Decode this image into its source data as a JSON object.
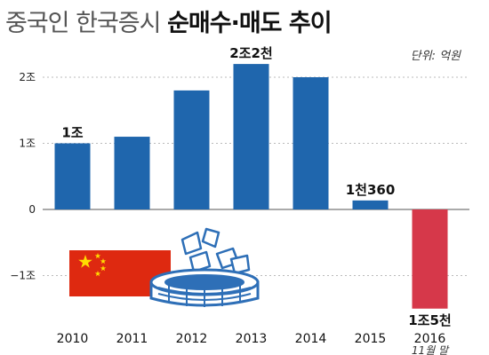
{
  "title": {
    "light": "중국인 한국증시",
    "bold": "순매수·매도 추이"
  },
  "unit_label": "단위: 억원",
  "chart_data": {
    "type": "bar",
    "categories": [
      "2010",
      "2011",
      "2012",
      "2013",
      "2014",
      "2015",
      "2016"
    ],
    "category_notes": [
      "",
      "",
      "",
      "",
      "",
      "",
      "11월 말"
    ],
    "values": [
      10000,
      11000,
      18000,
      22000,
      20000,
      1360,
      -15000
    ],
    "data_labels": [
      "1조",
      "",
      "",
      "2조2천",
      "",
      "1천360",
      "1조5천"
    ],
    "yticks": [
      {
        "value": 20000,
        "label": "2조"
      },
      {
        "value": 10000,
        "label": "1조"
      },
      {
        "value": 0,
        "label": "0"
      },
      {
        "value": -10000,
        "label": "−1조"
      }
    ],
    "ylim": [
      -15000,
      22000
    ],
    "unit": "억원",
    "colors": {
      "positive": "#1f66ad",
      "negative": "#d6384a",
      "grid": "#bbbbbb",
      "axis": "#555555"
    }
  },
  "illustration": {
    "flag_icon": "china-flag-icon",
    "flag_red": "#de2910",
    "flag_yellow": "#ffde00",
    "stadium_icon": "stock-papers-stadium-icon",
    "stadium_color": "#2e6fb7"
  }
}
